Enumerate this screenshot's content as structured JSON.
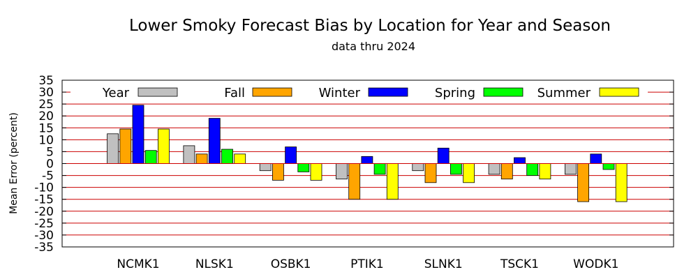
{
  "chart_data": {
    "type": "bar",
    "title": "Lower Smoky Forecast Bias by Location for Year and Season",
    "subtitle": "data thru 2024",
    "xlabel": "",
    "ylabel": "Mean Error (percent)",
    "ylim": [
      -35,
      35
    ],
    "yticks": [
      35,
      30,
      25,
      20,
      15,
      10,
      5,
      0,
      -5,
      -10,
      -15,
      -20,
      -25,
      -30,
      -35
    ],
    "grid": true,
    "legend_position": "top",
    "categories": [
      "NCMK1",
      "NLSK1",
      "OSBK1",
      "PTIK1",
      "SLNK1",
      "TSCK1",
      "WODK1"
    ],
    "series": [
      {
        "name": "Year",
        "color": "#c0c0c0",
        "values": [
          12.5,
          7.5,
          -3,
          -6.5,
          -3,
          -4.5,
          -4.5
        ]
      },
      {
        "name": "Fall",
        "color": "#ffa500",
        "values": [
          14.5,
          4,
          -7,
          -15,
          -8,
          -6.5,
          -16
        ]
      },
      {
        "name": "Winter",
        "color": "#0000ff",
        "values": [
          24.5,
          19,
          7,
          3,
          6.5,
          2.5,
          4
        ]
      },
      {
        "name": "Spring",
        "color": "#00ff00",
        "values": [
          5.5,
          6,
          -3.5,
          -4.5,
          -4.5,
          -5,
          -2.5
        ]
      },
      {
        "name": "Summer",
        "color": "#ffff00",
        "values": [
          14.5,
          4,
          -7,
          -15,
          -8,
          -6.5,
          -16
        ]
      }
    ],
    "grid_color": "#cc0000"
  }
}
